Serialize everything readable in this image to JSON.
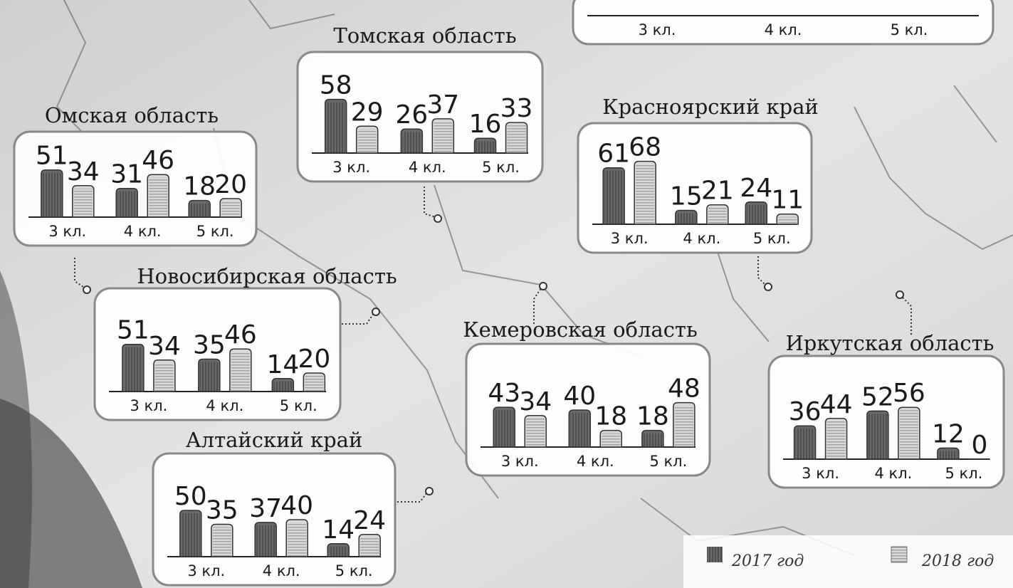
{
  "chart_data": [
    {
      "type": "bar",
      "categories": [
        "3 кл.",
        "4 кл.",
        "5 кл."
      ]
    },
    {
      "type": "bar",
      "title": "Томская область",
      "categories": [
        "3 кл.",
        "4 кл.",
        "5 кл."
      ],
      "series": [
        {
          "name": "2017 год",
          "color": "#6a6a6a",
          "values": [
            58,
            26,
            16
          ]
        },
        {
          "name": "2018 год",
          "color": "#d8d8d8",
          "values": [
            29,
            37,
            33
          ]
        }
      ]
    },
    {
      "type": "bar",
      "title": "Омская область",
      "categories": [
        "3 кл.",
        "4 кл.",
        "5 кл."
      ],
      "series": [
        {
          "name": "2017 год",
          "color": "#6a6a6a",
          "values": [
            51,
            31,
            18
          ]
        },
        {
          "name": "2018 год",
          "color": "#d8d8d8",
          "values": [
            34,
            46,
            20
          ]
        }
      ]
    },
    {
      "type": "bar",
      "title": "Красноярский край",
      "categories": [
        "3 кл.",
        "4 кл.",
        "5 кл."
      ],
      "series": [
        {
          "name": "2017 год",
          "color": "#6a6a6a",
          "values": [
            61,
            15,
            24
          ]
        },
        {
          "name": "2018 год",
          "color": "#d8d8d8",
          "values": [
            68,
            21,
            11
          ]
        }
      ]
    },
    {
      "type": "bar",
      "title": "Новосибирская область",
      "categories": [
        "3 кл.",
        "4 кл.",
        "5 кл."
      ],
      "series": [
        {
          "name": "2017 год",
          "color": "#6a6a6a",
          "values": [
            51,
            35,
            14
          ]
        },
        {
          "name": "2018 год",
          "color": "#d8d8d8",
          "values": [
            34,
            46,
            20
          ]
        }
      ]
    },
    {
      "type": "bar",
      "title": "Кемеровская область",
      "categories": [
        "3 кл.",
        "4 кл.",
        "5 кл."
      ],
      "series": [
        {
          "name": "2017 год",
          "color": "#6a6a6a",
          "values": [
            43,
            40,
            18
          ]
        },
        {
          "name": "2018 год",
          "color": "#d8d8d8",
          "values": [
            34,
            18,
            48
          ]
        }
      ]
    },
    {
      "type": "bar",
      "title": "Иркутская область",
      "categories": [
        "3 кл.",
        "4 кл.",
        "5 кл."
      ],
      "series": [
        {
          "name": "2017 год",
          "color": "#6a6a6a",
          "values": [
            36,
            52,
            12
          ]
        },
        {
          "name": "2018 год",
          "color": "#d8d8d8",
          "values": [
            44,
            56,
            0
          ]
        }
      ]
    },
    {
      "type": "bar",
      "title": "Алтайский край",
      "categories": [
        "3 кл.",
        "4 кл.",
        "5 кл."
      ],
      "series": [
        {
          "name": "2017 год",
          "color": "#6a6a6a",
          "values": [
            50,
            37,
            14
          ]
        },
        {
          "name": "2018 год",
          "color": "#d8d8d8",
          "values": [
            35,
            40,
            24
          ]
        }
      ]
    }
  ]
}
